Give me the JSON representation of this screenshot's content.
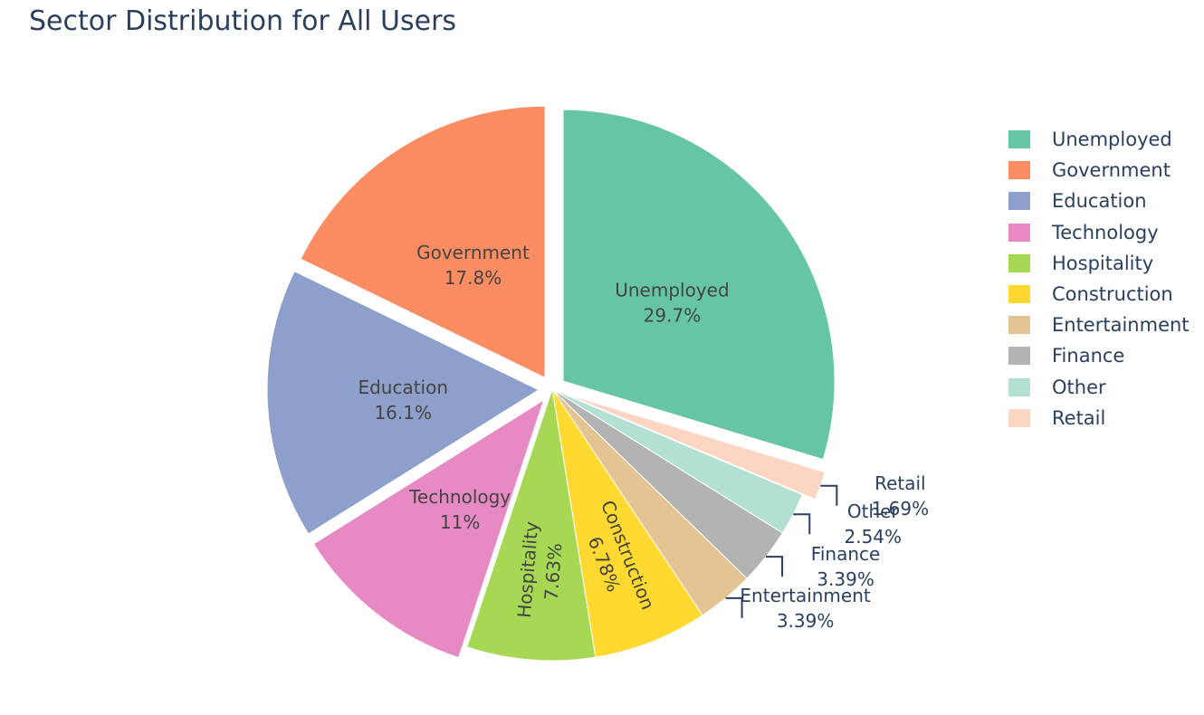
{
  "chart_data": {
    "type": "pie",
    "title": "Sector Distribution for All Users",
    "direction": "clockwise",
    "start_angle_deg": 0,
    "slices": [
      {
        "label": "Unemployed",
        "percent_label": "29.7%",
        "value": 29.66,
        "color": "#66c5a5",
        "pulled": true,
        "text": "inside"
      },
      {
        "label": "Retail",
        "percent_label": "1.69%",
        "value": 1.69,
        "color": "#fdd5c3",
        "pulled": true,
        "text": "outside"
      },
      {
        "label": "Other",
        "percent_label": "2.54%",
        "value": 2.54,
        "color": "#b2e0d2",
        "pulled": false,
        "text": "outside"
      },
      {
        "label": "Finance",
        "percent_label": "3.39%",
        "value": 3.39,
        "color": "#b3b3b3",
        "pulled": false,
        "text": "outside"
      },
      {
        "label": "Entertainment",
        "percent_label": "3.39%",
        "value": 3.39,
        "color": "#e5c494",
        "pulled": false,
        "text": "outside"
      },
      {
        "label": "Construction",
        "percent_label": "6.78%",
        "value": 6.78,
        "color": "#ffd92f",
        "pulled": false,
        "text": "radial"
      },
      {
        "label": "Hospitality",
        "percent_label": "7.63%",
        "value": 7.63,
        "color": "#a6d854",
        "pulled": false,
        "text": "radial"
      },
      {
        "label": "Technology",
        "percent_label": "11%",
        "value": 11.02,
        "color": "#e78ac3",
        "pulled": true,
        "text": "inside"
      },
      {
        "label": "Education",
        "percent_label": "16.1%",
        "value": 16.1,
        "color": "#8da0cb",
        "pulled": true,
        "text": "inside"
      },
      {
        "label": "Government",
        "percent_label": "17.8%",
        "value": 17.8,
        "color": "#fc8d62",
        "pulled": true,
        "text": "inside"
      }
    ],
    "legend": {
      "position": "right",
      "order": [
        "Unemployed",
        "Government",
        "Education",
        "Technology",
        "Hospitality",
        "Construction",
        "Entertainment",
        "Finance",
        "Other",
        "Retail"
      ]
    }
  }
}
